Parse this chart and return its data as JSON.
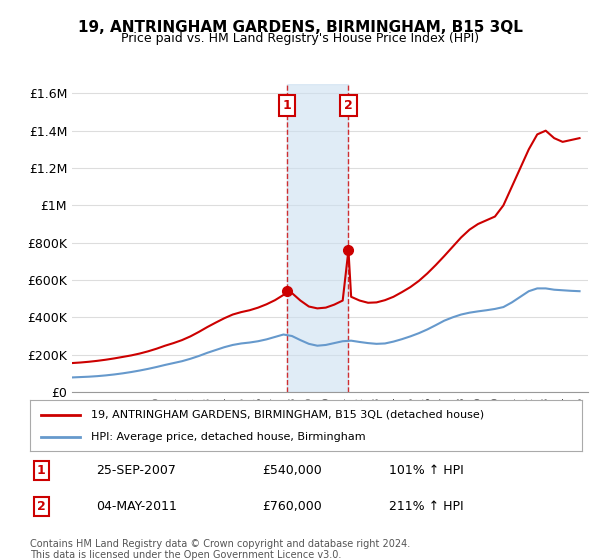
{
  "title": "19, ANTRINGHAM GARDENS, BIRMINGHAM, B15 3QL",
  "subtitle": "Price paid vs. HM Land Registry's House Price Index (HPI)",
  "ylabel_ticks": [
    "£0",
    "£200K",
    "£400K",
    "£600K",
    "£800K",
    "£1M",
    "£1.2M",
    "£1.4M",
    "£1.6M"
  ],
  "ytick_values": [
    0,
    200000,
    400000,
    600000,
    800000,
    1000000,
    1200000,
    1400000,
    1600000
  ],
  "ylim": [
    0,
    1650000
  ],
  "xlim_start": 1995.0,
  "xlim_end": 2025.5,
  "sale1_x": 2007.73,
  "sale1_y": 540000,
  "sale1_label": "1",
  "sale1_date": "25-SEP-2007",
  "sale1_price": "£540,000",
  "sale1_pct": "101% ↑ HPI",
  "sale2_x": 2011.34,
  "sale2_y": 760000,
  "sale2_label": "2",
  "sale2_date": "04-MAY-2011",
  "sale2_price": "£760,000",
  "sale2_pct": "211% ↑ HPI",
  "red_line_color": "#cc0000",
  "blue_line_color": "#6699cc",
  "shade_color": "#cce0f0",
  "legend1": "19, ANTRINGHAM GARDENS, BIRMINGHAM, B15 3QL (detached house)",
  "legend2": "HPI: Average price, detached house, Birmingham",
  "footnote": "Contains HM Land Registry data © Crown copyright and database right 2024.\nThis data is licensed under the Open Government Licence v3.0.",
  "background_color": "#ffffff",
  "grid_color": "#dddddd",
  "hpi_red_data_x": [
    1995,
    1995.5,
    1996,
    1996.5,
    1997,
    1997.5,
    1998,
    1998.5,
    1999,
    1999.5,
    2000,
    2000.5,
    2001,
    2001.5,
    2002,
    2002.5,
    2003,
    2003.5,
    2004,
    2004.5,
    2005,
    2005.5,
    2006,
    2006.5,
    2007,
    2007.5,
    2007.73,
    2008,
    2008.5,
    2009,
    2009.5,
    2010,
    2010.5,
    2011,
    2011.34,
    2011.5,
    2012,
    2012.5,
    2013,
    2013.5,
    2014,
    2014.5,
    2015,
    2015.5,
    2016,
    2016.5,
    2017,
    2017.5,
    2018,
    2018.5,
    2019,
    2019.5,
    2020,
    2020.5,
    2021,
    2021.5,
    2022,
    2022.5,
    2023,
    2023.5,
    2024,
    2024.5,
    2025
  ],
  "hpi_red_data_y": [
    155000,
    158000,
    162000,
    167000,
    173000,
    180000,
    188000,
    196000,
    206000,
    218000,
    232000,
    248000,
    262000,
    278000,
    298000,
    322000,
    348000,
    372000,
    395000,
    415000,
    428000,
    438000,
    452000,
    470000,
    492000,
    520000,
    540000,
    530000,
    490000,
    458000,
    448000,
    452000,
    468000,
    490000,
    760000,
    510000,
    490000,
    478000,
    480000,
    492000,
    510000,
    535000,
    562000,
    595000,
    635000,
    680000,
    728000,
    778000,
    828000,
    870000,
    900000,
    920000,
    940000,
    1000000,
    1100000,
    1200000,
    1300000,
    1380000,
    1400000,
    1360000,
    1340000,
    1350000,
    1360000
  ],
  "hpi_blue_data_x": [
    1995,
    1995.5,
    1996,
    1996.5,
    1997,
    1997.5,
    1998,
    1998.5,
    1999,
    1999.5,
    2000,
    2000.5,
    2001,
    2001.5,
    2002,
    2002.5,
    2003,
    2003.5,
    2004,
    2004.5,
    2005,
    2005.5,
    2006,
    2006.5,
    2007,
    2007.5,
    2008,
    2008.5,
    2009,
    2009.5,
    2010,
    2010.5,
    2011,
    2011.5,
    2012,
    2012.5,
    2013,
    2013.5,
    2014,
    2014.5,
    2015,
    2015.5,
    2016,
    2016.5,
    2017,
    2017.5,
    2018,
    2018.5,
    2019,
    2019.5,
    2020,
    2020.5,
    2021,
    2021.5,
    2022,
    2022.5,
    2023,
    2023.5,
    2024,
    2024.5,
    2025
  ],
  "hpi_blue_data_y": [
    78000,
    80000,
    82000,
    85000,
    89000,
    94000,
    100000,
    107000,
    115000,
    124000,
    134000,
    145000,
    155000,
    165000,
    178000,
    193000,
    210000,
    225000,
    240000,
    252000,
    260000,
    265000,
    272000,
    282000,
    295000,
    308000,
    300000,
    278000,
    258000,
    248000,
    252000,
    262000,
    272000,
    275000,
    268000,
    262000,
    258000,
    260000,
    270000,
    283000,
    298000,
    315000,
    335000,
    358000,
    382000,
    400000,
    415000,
    425000,
    432000,
    438000,
    445000,
    455000,
    480000,
    510000,
    540000,
    555000,
    555000,
    548000,
    545000,
    542000,
    540000
  ]
}
